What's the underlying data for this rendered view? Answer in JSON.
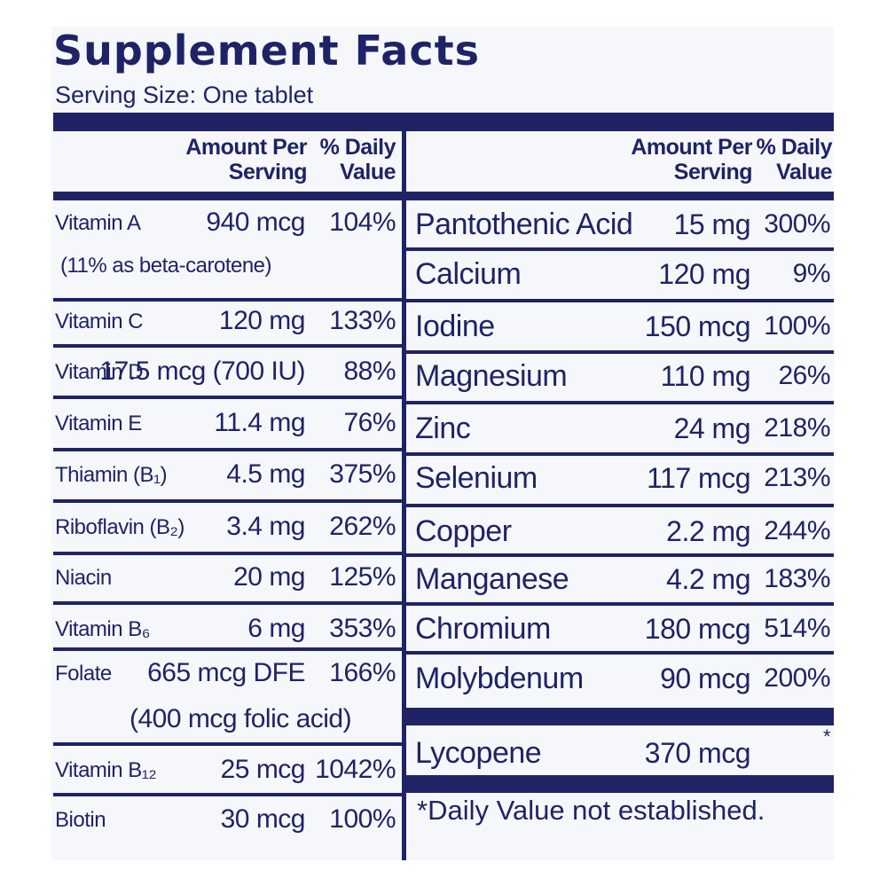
{
  "label": {
    "title": "Supplement Facts",
    "serving_size": "Serving Size:  One tablet",
    "header": {
      "amount_line1": "Amount Per",
      "amount_line2": "Serving",
      "dv_line1": "% Daily",
      "dv_line2": "Value"
    },
    "left_rows": [
      {
        "name": "Vitamin A",
        "amount": "940 mcg",
        "dv": "104%",
        "sub": "(11% as beta-carotene)"
      },
      {
        "name": "Vitamin C",
        "amount": "120 mg",
        "dv": "133%"
      },
      {
        "name": "Vitamin D",
        "amount": "17.5 mcg (700 IU)",
        "dv": "88%"
      },
      {
        "name": "Vitamin E",
        "amount": "11.4 mg",
        "dv": "76%"
      },
      {
        "name": "Thiamin (B₁)",
        "amount": "4.5 mg",
        "dv": "375%"
      },
      {
        "name": "Riboflavin (B₂)",
        "amount": "3.4 mg",
        "dv": "262%"
      },
      {
        "name": "Niacin",
        "amount": "20 mg",
        "dv": "125%"
      },
      {
        "name": "Vitamin B₆",
        "amount": "6 mg",
        "dv": "353%"
      },
      {
        "name": "Folate",
        "amount": "665 mcg DFE",
        "dv": "166%",
        "sub": "(400 mcg folic acid)"
      },
      {
        "name": "Vitamin B₁₂",
        "amount": "25 mcg",
        "dv": "1042%"
      },
      {
        "name": "Biotin",
        "amount": "30 mcg",
        "dv": "100%"
      }
    ],
    "right_rows": [
      {
        "name": "Pantothenic Acid",
        "amount": "15 mg",
        "dv": "300%"
      },
      {
        "name": "Calcium",
        "amount": "120 mg",
        "dv": "9%"
      },
      {
        "name": "Iodine",
        "amount": "150 mcg",
        "dv": "100%"
      },
      {
        "name": "Magnesium",
        "amount": "110 mg",
        "dv": "26%"
      },
      {
        "name": "Zinc",
        "amount": "24 mg",
        "dv": "218%"
      },
      {
        "name": "Selenium",
        "amount": "117 mcg",
        "dv": "213%"
      },
      {
        "name": "Copper",
        "amount": "2.2 mg",
        "dv": "244%"
      },
      {
        "name": "Manganese",
        "amount": "4.2 mg",
        "dv": "183%"
      },
      {
        "name": "Chromium",
        "amount": "180 mcg",
        "dv": "514%"
      },
      {
        "name": "Molybdenum",
        "amount": "90 mcg",
        "dv": "200%"
      },
      {
        "name": "Lycopene",
        "amount": "370 mcg",
        "dv": "*"
      }
    ],
    "footnote": "*Daily Value not established."
  }
}
